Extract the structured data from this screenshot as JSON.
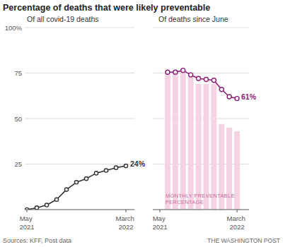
{
  "title": "Percentage of deaths that were likely preventable",
  "source": "Sources: KFF, Post data",
  "credit": "THE WASHINGTON POST",
  "chart_data": [
    {
      "type": "line",
      "title": "Of all covid-19 deaths",
      "categories": [
        "May 2021",
        null,
        null,
        null,
        null,
        null,
        null,
        null,
        null,
        null,
        "March 2022"
      ],
      "values": [
        0,
        1,
        2.5,
        5.5,
        11,
        15,
        17,
        20,
        21.5,
        23,
        24
      ],
      "value_labels": [
        null,
        null,
        null,
        null,
        null,
        null,
        null,
        null,
        null,
        null,
        "24%"
      ],
      "color": "#333333",
      "marker": "circle",
      "ylim": [
        0,
        100
      ],
      "yticks": [
        25,
        50,
        75,
        {
          "value": 100,
          "label": "100%"
        }
      ],
      "grid": true
    },
    {
      "type": "bar",
      "title": "Of deaths since June",
      "categories": [
        "May 2021",
        null,
        null,
        null,
        null,
        null,
        null,
        null,
        null,
        null,
        "March 2022"
      ],
      "series": [
        {
          "name": "MONTHLY PREVENTABLE PERCENTAGE",
          "type": "bar",
          "color": "#f6d3e3",
          "values": [
            null,
            76,
            75,
            75,
            73,
            69,
            69,
            69,
            47,
            45,
            43
          ]
        },
        {
          "type": "line",
          "color": "#8c1d78",
          "marker": "circle",
          "values": [
            null,
            75.5,
            75.5,
            76.5,
            74,
            72,
            71.5,
            71,
            66,
            62,
            61
          ],
          "value_labels": [
            null,
            null,
            null,
            null,
            null,
            null,
            null,
            null,
            null,
            null,
            "61%"
          ]
        }
      ],
      "ylim": [
        0,
        100
      ],
      "yticks": [
        25,
        50,
        75,
        100
      ],
      "grid": true,
      "tick_labels": "x"
    }
  ]
}
